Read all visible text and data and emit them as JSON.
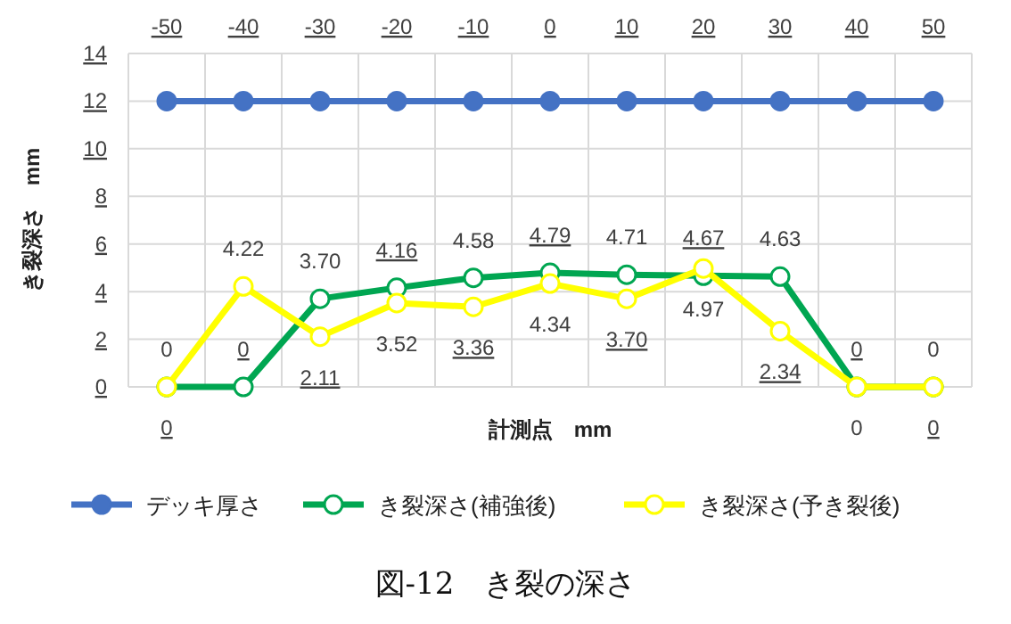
{
  "chart_data": {
    "type": "line",
    "title": "図-12　き裂の深さ",
    "xlabel": "計測点　mm",
    "ylabel": "き裂深さ　mm",
    "categories": [
      "-50",
      "-40",
      "-30",
      "-20",
      "-10",
      "0",
      "10",
      "20",
      "30",
      "40",
      "50"
    ],
    "ylim": [
      0,
      14
    ],
    "yticks": [
      0,
      2,
      4,
      6,
      8,
      10,
      12,
      14
    ],
    "grid": true,
    "legend": "bottom",
    "marker": "circle",
    "line_style": "solid",
    "series": [
      {
        "name": "デッキ厚さ",
        "color": "#4472c4",
        "values": [
          12,
          12,
          12,
          12,
          12,
          12,
          12,
          12,
          12,
          12,
          12
        ]
      },
      {
        "name": "き裂深さ(補強後)",
        "color": "#00a651",
        "values": [
          0,
          0,
          3.7,
          4.16,
          4.58,
          4.79,
          4.71,
          4.67,
          4.63,
          0,
          0
        ],
        "value_labels": [
          "0",
          "0",
          "3.70",
          "4.16",
          "4.58",
          "4.79",
          "4.71",
          "4.67",
          "4.63",
          "0",
          "0"
        ]
      },
      {
        "name": "き裂深さ(予き裂後)",
        "color": "#ffff00",
        "values": [
          0,
          4.22,
          2.11,
          3.52,
          3.36,
          4.34,
          3.7,
          4.97,
          2.34,
          0,
          0
        ],
        "value_labels": [
          "0",
          "4.22",
          "2.11",
          "3.52",
          "3.36",
          "4.34",
          "3.70",
          "4.97",
          "2.34",
          "0",
          "0"
        ]
      }
    ]
  }
}
